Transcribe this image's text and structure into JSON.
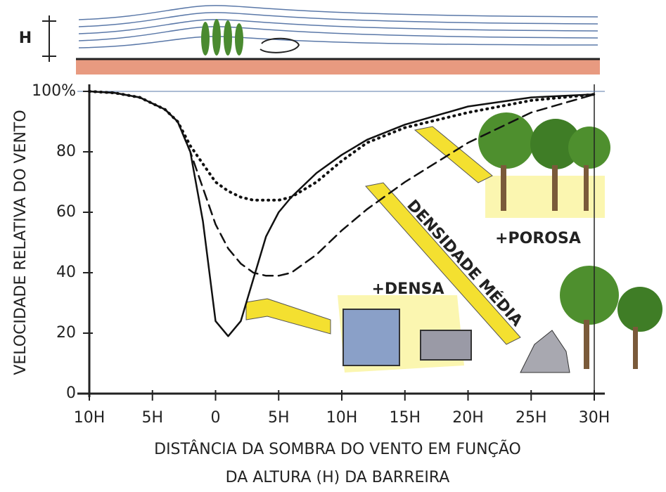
{
  "chart_data": {
    "type": "line",
    "ylabel": "VELOCIDADE RELATIVA DO VENTO",
    "xlabel": [
      "DISTÂNCIA DA SOMBRA DO VENTO EM FUNÇÃO",
      "DA ALTURA (H) DA BARREIRA"
    ],
    "height_label": "H",
    "x": [
      -10,
      -8,
      -6,
      -4,
      -3,
      -2,
      -1,
      0,
      1,
      2,
      3,
      4,
      5,
      6,
      8,
      10,
      12,
      15,
      20,
      25,
      30
    ],
    "series": [
      {
        "name": "+DENSA",
        "color": "#111111",
        "style": "solid",
        "values": [
          100,
          99.5,
          98,
          94,
          90,
          80,
          57,
          24,
          19,
          24,
          38,
          52,
          60,
          65,
          73,
          79,
          84,
          89,
          95,
          98,
          99
        ]
      },
      {
        "name": "DENSIDADE MÉDIA",
        "color": "#111111",
        "style": "dashed",
        "values": [
          100,
          99.5,
          98,
          94,
          90,
          80,
          68,
          56,
          48,
          43,
          40,
          39,
          39,
          40,
          46,
          54,
          61,
          70,
          83,
          93,
          99
        ]
      },
      {
        "name": "+POROSA",
        "color": "#111111",
        "style": "dotted",
        "values": [
          100,
          99.5,
          98,
          94,
          90,
          82,
          76,
          70,
          67,
          65,
          64,
          64,
          64,
          65,
          70,
          77,
          83,
          88,
          93,
          97,
          99
        ]
      }
    ],
    "xlim": [
      -10,
      30
    ],
    "xticks": [
      {
        "value": -10,
        "label": "10H"
      },
      {
        "value": -5,
        "label": "5H"
      },
      0,
      {
        "value": 5,
        "label": "5H"
      },
      {
        "value": 10,
        "label": "10H"
      },
      {
        "value": 15,
        "label": "15H"
      },
      {
        "value": 20,
        "label": "20H"
      },
      {
        "value": 25,
        "label": "25H"
      },
      {
        "value": 30,
        "label": "30H"
      }
    ],
    "ylim": [
      0,
      100
    ],
    "yticks": [
      0,
      20,
      40,
      60,
      80,
      {
        "value": 100,
        "label": "100%"
      }
    ],
    "grid": false
  }
}
